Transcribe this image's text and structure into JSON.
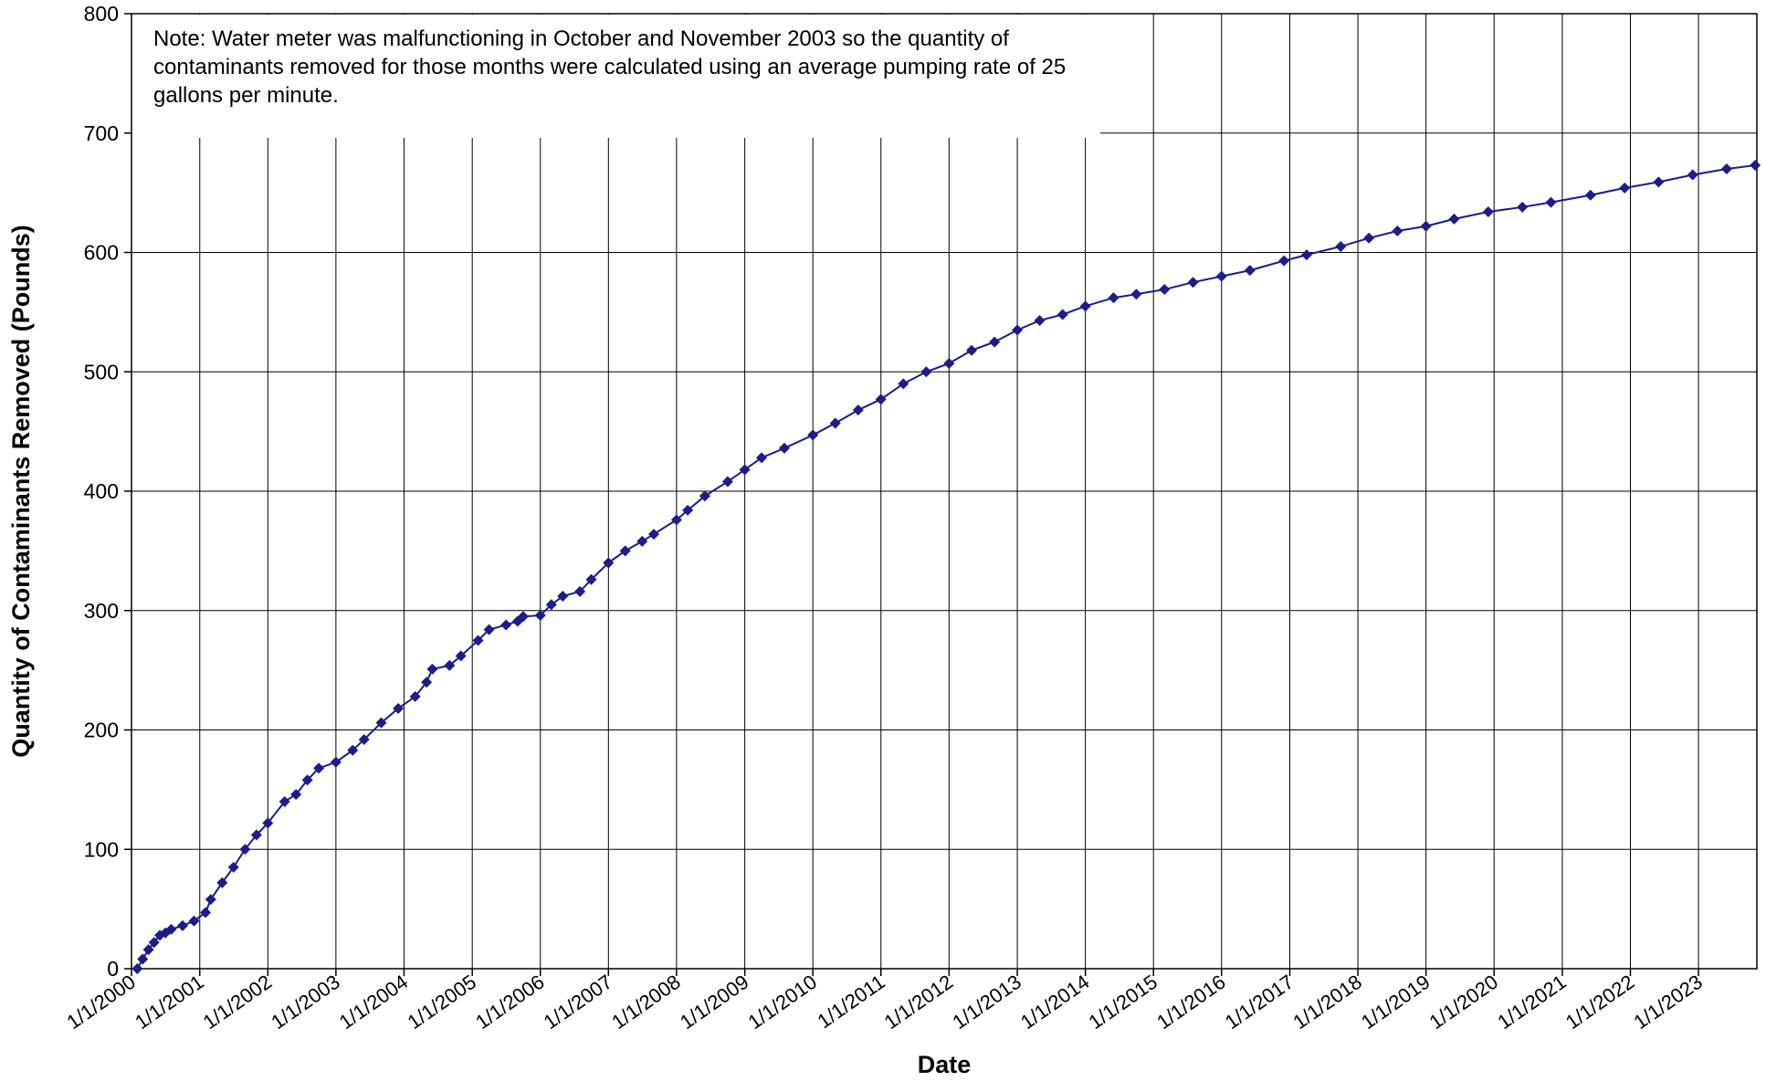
{
  "chart_data": {
    "type": "line",
    "xlabel": "Date",
    "ylabel": "Quantity of Contaminants Removed (Pounds)",
    "annotation": "Note: Water meter was malfunctioning in October and November 2003 so the quantity of contaminants removed for those months were calculated using an average pumping rate of 25 gallons per minute.",
    "x": [
      "2000-02-01",
      "2000-03-01",
      "2000-04-01",
      "2000-05-01",
      "2000-06-01",
      "2000-07-01",
      "2000-08-01",
      "2000-10-01",
      "2000-12-01",
      "2001-02-01",
      "2001-03-01",
      "2001-05-01",
      "2001-07-01",
      "2001-09-01",
      "2001-11-01",
      "2002-01-01",
      "2002-04-01",
      "2002-06-01",
      "2002-08-01",
      "2002-10-01",
      "2003-01-01",
      "2003-04-01",
      "2003-06-01",
      "2003-09-01",
      "2003-12-01",
      "2004-03-01",
      "2004-05-01",
      "2004-06-01",
      "2004-09-01",
      "2004-11-01",
      "2005-02-01",
      "2005-04-01",
      "2005-07-01",
      "2005-09-01",
      "2005-10-01",
      "2006-01-01",
      "2006-03-01",
      "2006-05-01",
      "2006-08-01",
      "2006-10-01",
      "2007-01-01",
      "2007-04-01",
      "2007-07-01",
      "2007-09-01",
      "2008-01-01",
      "2008-03-01",
      "2008-06-01",
      "2008-10-01",
      "2009-01-01",
      "2009-04-01",
      "2009-08-01",
      "2010-01-01",
      "2010-05-01",
      "2010-09-01",
      "2011-01-01",
      "2011-05-01",
      "2011-09-01",
      "2012-01-01",
      "2012-05-01",
      "2012-09-01",
      "2013-01-01",
      "2013-05-01",
      "2013-09-01",
      "2014-01-01",
      "2014-06-01",
      "2014-10-01",
      "2015-03-01",
      "2015-08-01",
      "2016-01-01",
      "2016-06-01",
      "2016-12-01",
      "2017-04-01",
      "2017-10-01",
      "2018-03-01",
      "2018-08-01",
      "2019-01-01",
      "2019-06-01",
      "2019-12-01",
      "2020-06-01",
      "2020-11-01",
      "2021-06-01",
      "2021-12-01",
      "2022-06-01",
      "2022-12-01",
      "2023-06-01",
      "2023-11-01"
    ],
    "series": [
      {
        "color": "#1c1c8a",
        "values": [
          0,
          8,
          16,
          22,
          28,
          30,
          33,
          36,
          40,
          47,
          58,
          72,
          85,
          100,
          112,
          122,
          140,
          146,
          158,
          168,
          173,
          183,
          192,
          206,
          218,
          228,
          240,
          251,
          254,
          262,
          275,
          284,
          288,
          291,
          295,
          296,
          305,
          312,
          316,
          326,
          340,
          350,
          358,
          364,
          376,
          384,
          396,
          408,
          418,
          428,
          436,
          447,
          457,
          468,
          477,
          490,
          500,
          507,
          518,
          525,
          535,
          543,
          548,
          555,
          562,
          565,
          569,
          575,
          580,
          585,
          593,
          598,
          605,
          612,
          618,
          622,
          628,
          634,
          638,
          642,
          648,
          654,
          659,
          665,
          670,
          673
        ]
      }
    ],
    "xlim": [
      "2000-01-01",
      "2023-11-10"
    ],
    "xticks": [
      {
        "value": "2000-01-01",
        "label": "1/1/2000"
      },
      {
        "value": "2001-01-01",
        "label": "1/1/2001"
      },
      {
        "value": "2002-01-01",
        "label": "1/1/2002"
      },
      {
        "value": "2003-01-01",
        "label": "1/1/2003"
      },
      {
        "value": "2004-01-01",
        "label": "1/1/2004"
      },
      {
        "value": "2005-01-01",
        "label": "1/1/2005"
      },
      {
        "value": "2006-01-01",
        "label": "1/1/2006"
      },
      {
        "value": "2007-01-01",
        "label": "1/1/2007"
      },
      {
        "value": "2008-01-01",
        "label": "1/1/2008"
      },
      {
        "value": "2009-01-01",
        "label": "1/1/2009"
      },
      {
        "value": "2010-01-01",
        "label": "1/1/2010"
      },
      {
        "value": "2011-01-01",
        "label": "1/1/2011"
      },
      {
        "value": "2012-01-01",
        "label": "1/1/2012"
      },
      {
        "value": "2013-01-01",
        "label": "1/1/2013"
      },
      {
        "value": "2014-01-01",
        "label": "1/1/2014"
      },
      {
        "value": "2015-01-01",
        "label": "1/1/2015"
      },
      {
        "value": "2016-01-01",
        "label": "1/1/2016"
      },
      {
        "value": "2017-01-01",
        "label": "1/1/2017"
      },
      {
        "value": "2018-01-01",
        "label": "1/1/2018"
      },
      {
        "value": "2019-01-01",
        "label": "1/1/2019"
      },
      {
        "value": "2020-01-01",
        "label": "1/1/2020"
      },
      {
        "value": "2021-01-01",
        "label": "1/1/2021"
      },
      {
        "value": "2022-01-01",
        "label": "1/1/2022"
      },
      {
        "value": "2023-01-01",
        "label": "1/1/2023"
      }
    ],
    "ylim": [
      0,
      800
    ],
    "yticks": [
      0,
      100,
      200,
      300,
      400,
      500,
      600,
      700,
      800
    ],
    "grid": true,
    "marker": "diamond"
  }
}
